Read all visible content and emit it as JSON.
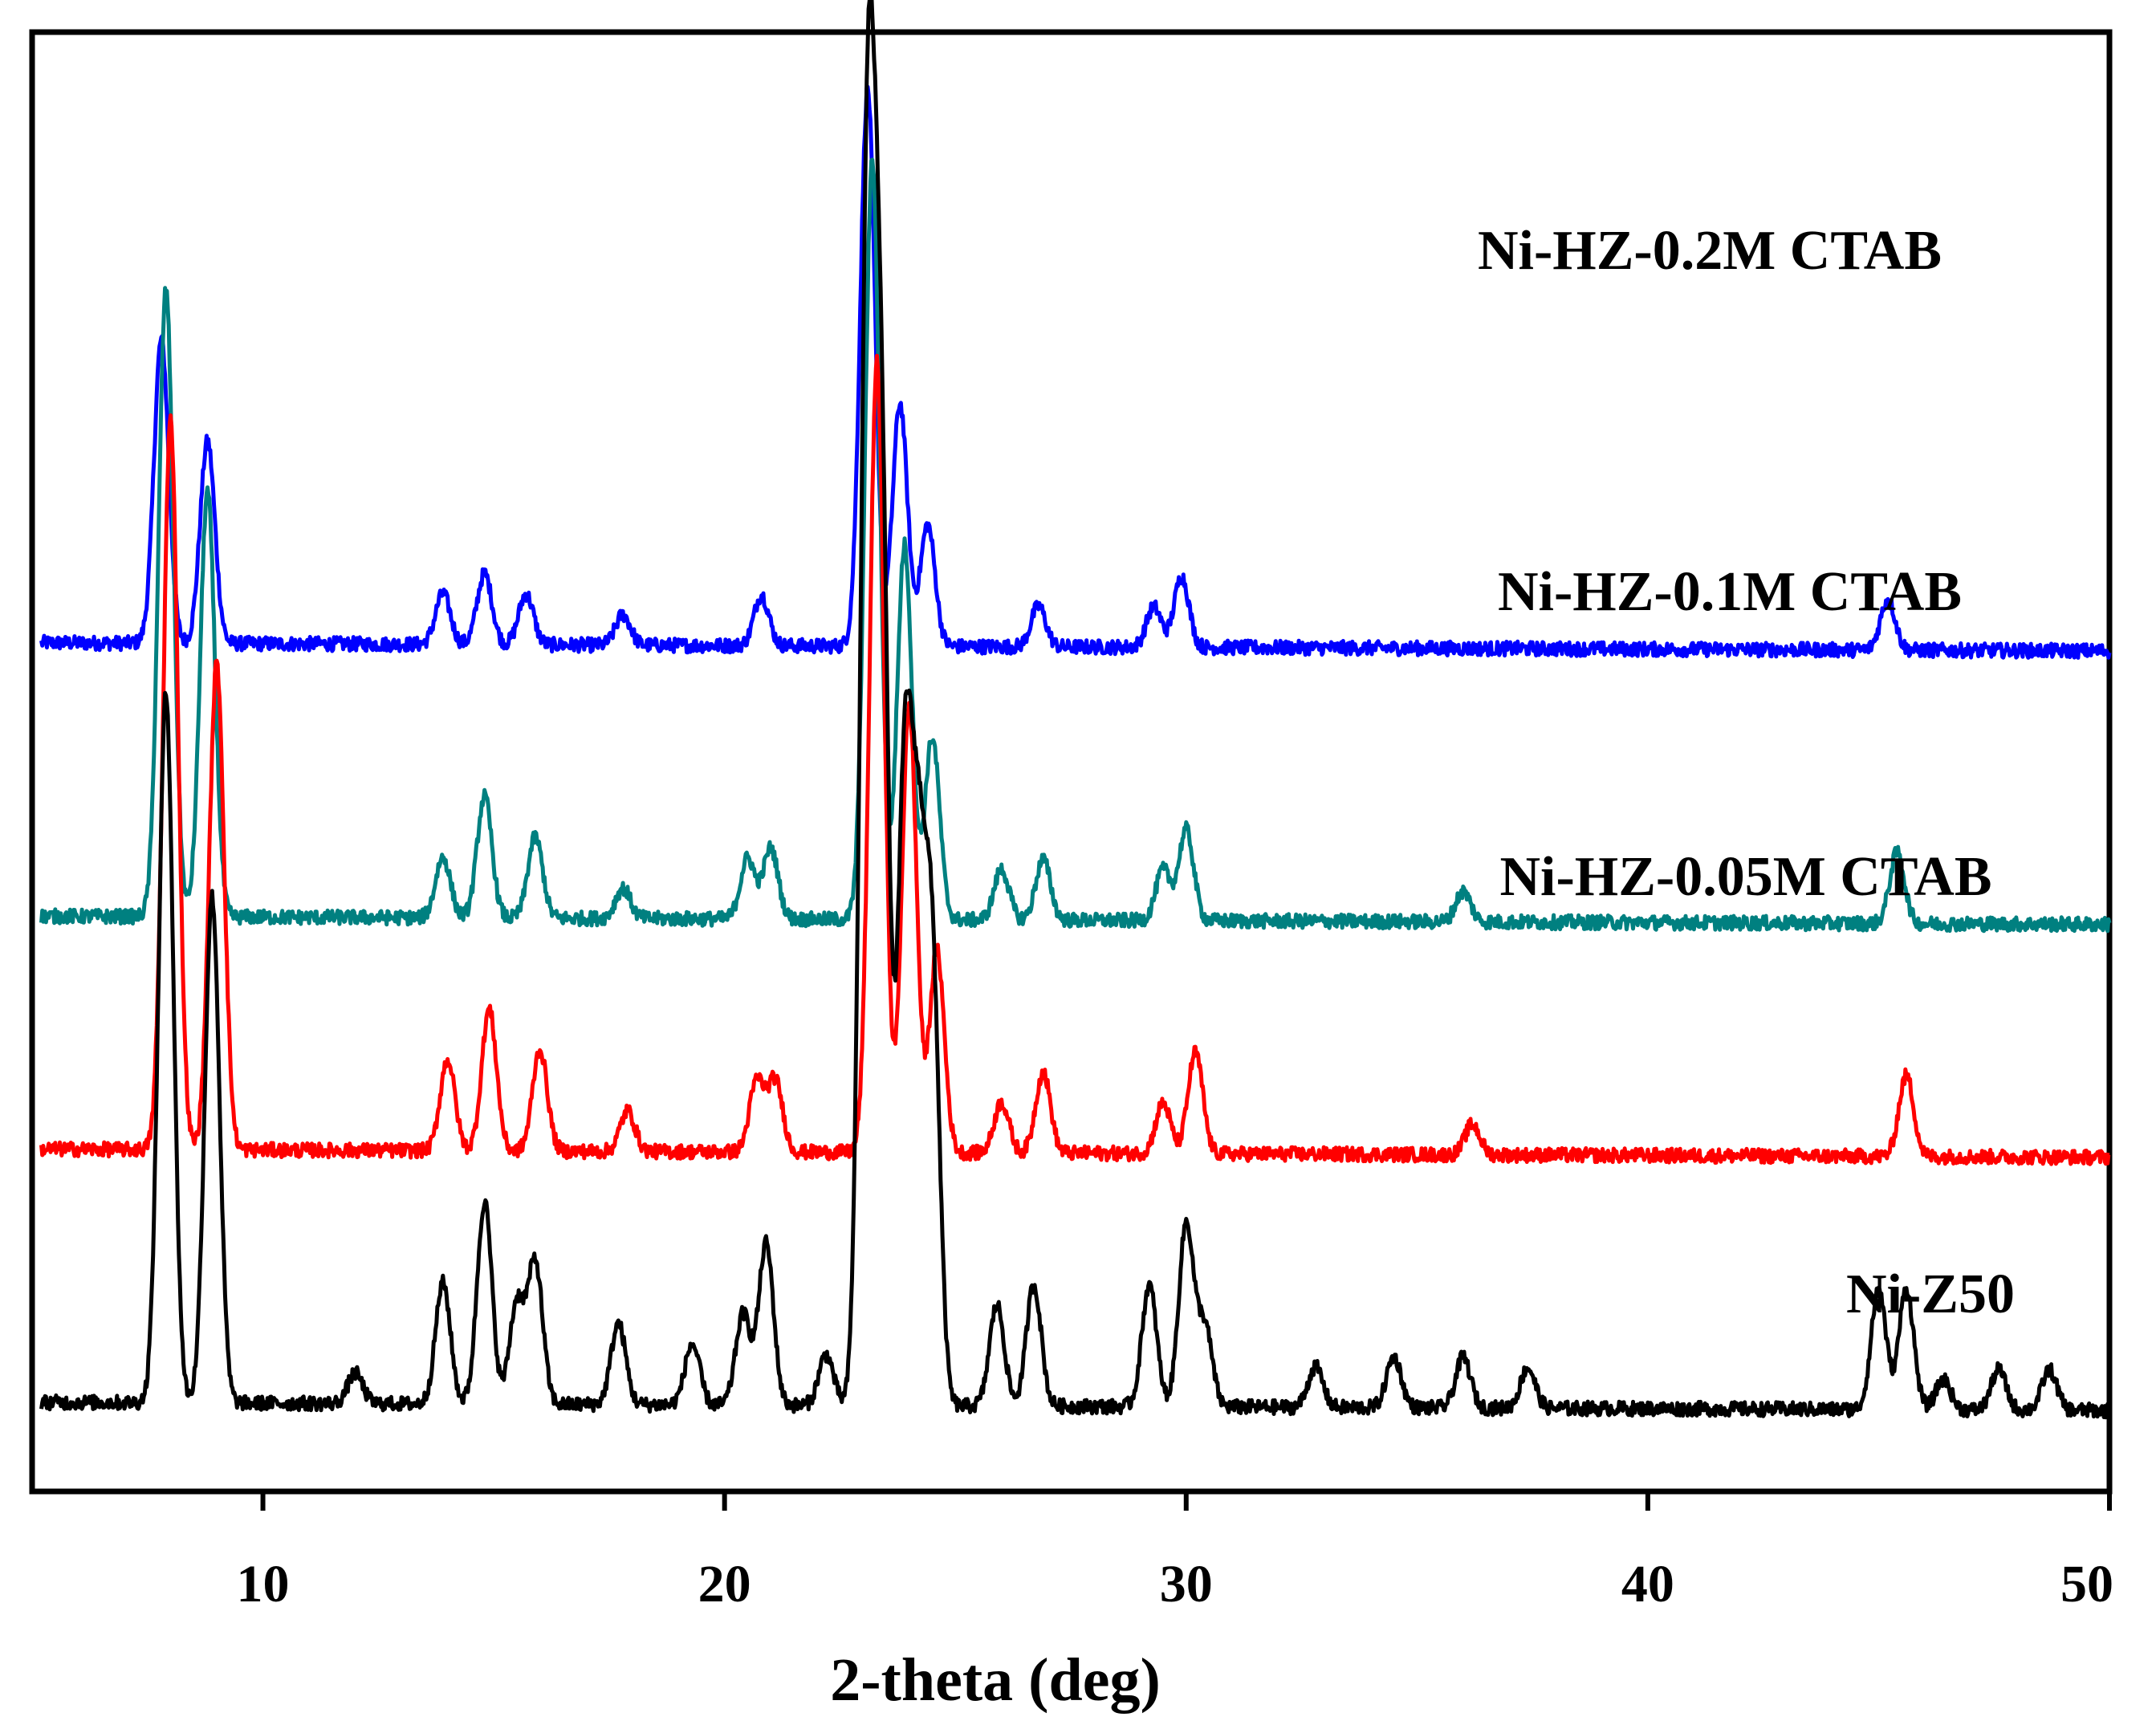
{
  "chart_data": {
    "type": "line",
    "title": "",
    "xlabel": "2-theta (deg)",
    "ylabel": "",
    "xlim": [
      5,
      50
    ],
    "xticks": [
      10,
      20,
      30,
      40,
      50
    ],
    "xtick_labels": [
      "10",
      "20",
      "30",
      "40",
      "50"
    ],
    "grid": false,
    "legend": "inline labels at right of each trace",
    "y_units": "arbitrary intensity, traces vertically offset",
    "series": [
      {
        "name": "Ni-HZ-0.2M CTAB",
        "color": "#0000ff",
        "offset": 0.8,
        "peaks": [
          [
            7.8,
            0.3
          ],
          [
            8.8,
            0.2
          ],
          [
            13.9,
            0.05
          ],
          [
            14.8,
            0.07
          ],
          [
            15.7,
            0.05
          ],
          [
            17.8,
            0.03
          ],
          [
            20.8,
            0.05
          ],
          [
            23.1,
            0.55
          ],
          [
            23.8,
            0.24
          ],
          [
            24.4,
            0.12
          ],
          [
            26.8,
            0.04
          ],
          [
            29.3,
            0.04
          ],
          [
            29.9,
            0.07
          ],
          [
            45.2,
            0.05
          ]
        ]
      },
      {
        "name": "Ni-HZ-0.1M CTAB",
        "color": "#008080",
        "offset": 0.53,
        "peaks": [
          [
            7.9,
            0.62
          ],
          [
            8.8,
            0.42
          ],
          [
            13.9,
            0.06
          ],
          [
            14.8,
            0.12
          ],
          [
            15.9,
            0.08
          ],
          [
            17.8,
            0.03
          ],
          [
            20.5,
            0.06
          ],
          [
            21.0,
            0.07
          ],
          [
            23.2,
            0.75
          ],
          [
            23.9,
            0.37
          ],
          [
            24.5,
            0.18
          ],
          [
            26.0,
            0.05
          ],
          [
            26.9,
            0.06
          ],
          [
            29.5,
            0.05
          ],
          [
            30.0,
            0.09
          ],
          [
            36.0,
            0.03
          ],
          [
            45.4,
            0.07
          ]
        ]
      },
      {
        "name": "Ni-HZ-0.05M CTAB",
        "color": "#ff0000",
        "offset": 0.3,
        "peaks": [
          [
            8.0,
            0.72
          ],
          [
            9.0,
            0.48
          ],
          [
            14.0,
            0.09
          ],
          [
            14.9,
            0.14
          ],
          [
            16.0,
            0.1
          ],
          [
            17.9,
            0.04
          ],
          [
            20.7,
            0.07
          ],
          [
            21.1,
            0.07
          ],
          [
            23.3,
            0.78
          ],
          [
            24.0,
            0.44
          ],
          [
            24.6,
            0.2
          ],
          [
            26.0,
            0.05
          ],
          [
            26.9,
            0.08
          ],
          [
            29.5,
            0.05
          ],
          [
            30.2,
            0.1
          ],
          [
            36.2,
            0.03
          ],
          [
            45.6,
            0.08
          ]
        ]
      },
      {
        "name": "Ni-Z50",
        "color": "#000000",
        "offset": 0.05,
        "peaks": [
          [
            7.9,
            0.7
          ],
          [
            8.9,
            0.5
          ],
          [
            12.0,
            0.03
          ],
          [
            13.9,
            0.12
          ],
          [
            14.8,
            0.2
          ],
          [
            15.5,
            0.1
          ],
          [
            15.9,
            0.14
          ],
          [
            17.7,
            0.08
          ],
          [
            19.3,
            0.06
          ],
          [
            20.4,
            0.09
          ],
          [
            20.9,
            0.16
          ],
          [
            22.2,
            0.05
          ],
          [
            23.1,
            1.2
          ],
          [
            23.4,
            0.85
          ],
          [
            23.9,
            0.6
          ],
          [
            24.2,
            0.45
          ],
          [
            24.5,
            0.42
          ],
          [
            25.9,
            0.1
          ],
          [
            26.7,
            0.12
          ],
          [
            29.2,
            0.12
          ],
          [
            30.0,
            0.18
          ],
          [
            30.4,
            0.08
          ],
          [
            32.8,
            0.04
          ],
          [
            34.5,
            0.05
          ],
          [
            36.0,
            0.05
          ],
          [
            37.4,
            0.04
          ],
          [
            45.0,
            0.12
          ],
          [
            45.6,
            0.12
          ],
          [
            46.4,
            0.03
          ],
          [
            47.6,
            0.04
          ],
          [
            48.7,
            0.04
          ]
        ]
      }
    ]
  }
}
